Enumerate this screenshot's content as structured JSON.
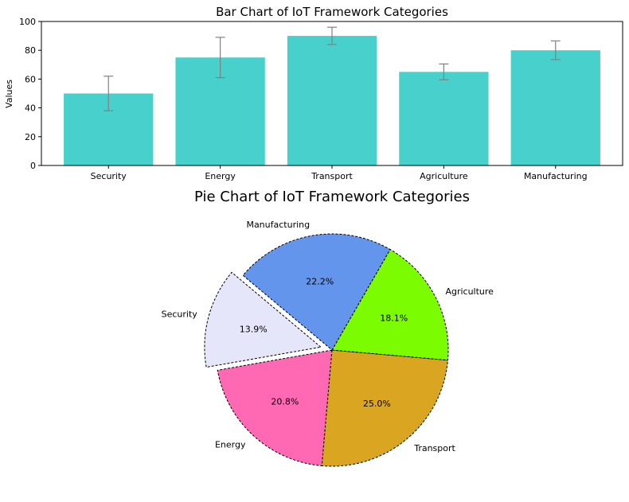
{
  "chart_data": [
    {
      "type": "bar",
      "title": "Bar Chart of IoT Framework Categories",
      "xlabel": "",
      "ylabel": "Values",
      "categories": [
        "Security",
        "Energy",
        "Transport",
        "Agriculture",
        "Manufacturing"
      ],
      "values": [
        50,
        75,
        90,
        65,
        80
      ],
      "errors": [
        12,
        14,
        6,
        5.5,
        6.5
      ],
      "ylim": [
        0,
        100
      ],
      "yticks": [
        0,
        20,
        40,
        60,
        80,
        100
      ],
      "bar_color": "#48D1CC",
      "error_color": "#808080",
      "grid": false
    },
    {
      "type": "pie",
      "title": "Pie Chart of IoT Framework Categories",
      "labels": [
        "Security",
        "Energy",
        "Transport",
        "Agriculture",
        "Manufacturing"
      ],
      "values": [
        50,
        75,
        90,
        65,
        80
      ],
      "percent_labels": [
        "13.9%",
        "20.8%",
        "25.0%",
        "18.1%",
        "22.2%"
      ],
      "colors": [
        "#E6E6FA",
        "#FF69B4",
        "#DAA520",
        "#7CFC00",
        "#6495ED"
      ],
      "explode": [
        0.1,
        0,
        0,
        0,
        0
      ],
      "edge_style": "dashed"
    }
  ]
}
